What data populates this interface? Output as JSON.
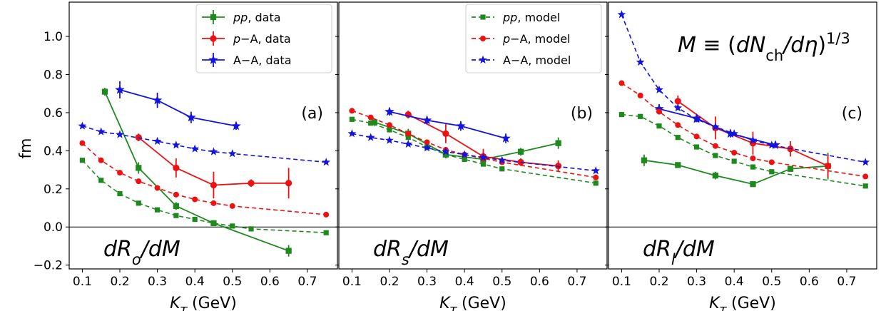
{
  "ylabel": "fm",
  "xlabel": "K_T (GeV)",
  "colors": {
    "pp": "#1e8a1e",
    "pA": "#ee1111",
    "AA": "#1414dd"
  },
  "chart_data": {
    "type": "line",
    "shared_y": true,
    "ylim": [
      -0.22,
      1.18
    ],
    "yticks": [
      -0.2,
      0.0,
      0.2,
      0.4,
      0.6,
      0.8,
      1.0
    ],
    "ytick_labels": [
      "−0.2",
      "0.0",
      "0.2",
      "0.4",
      "0.6",
      "0.8",
      "1.0"
    ],
    "xlim": [
      0.065,
      0.78
    ],
    "xticks": [
      0.1,
      0.2,
      0.3,
      0.4,
      0.5,
      0.6,
      0.7
    ],
    "xtick_labels": [
      "0.1",
      "0.2",
      "0.3",
      "0.4",
      "0.5",
      "0.6",
      "0.7"
    ],
    "xlabel": "K_T (GeV)",
    "ylabel": "fm",
    "formula": "M ≡ (dN_ch/dη)^1/3",
    "panels": [
      {
        "tag": "(a)",
        "deriv_label": "dR_o/dM",
        "legend": [
          "pp, data",
          "p−A, data",
          "A−A, data"
        ],
        "series": [
          {
            "name": "pp, data",
            "kind": "data",
            "color_key": "pp",
            "marker": "square",
            "x": [
              0.16,
              0.25,
              0.35,
              0.45,
              0.65
            ],
            "y": [
              0.71,
              0.31,
              0.11,
              0.02,
              -0.125
            ],
            "err": [
              0.02,
              0.03,
              0.02,
              0.015,
              0.03
            ]
          },
          {
            "name": "p−A, data",
            "kind": "data",
            "color_key": "pA",
            "marker": "circle",
            "x": [
              0.25,
              0.35,
              0.45,
              0.55,
              0.65
            ],
            "y": [
              0.47,
              0.31,
              0.22,
              0.23,
              0.23
            ],
            "err": [
              0.02,
              0.05,
              0.07,
              0.02,
              0.08
            ]
          },
          {
            "name": "A−A, data",
            "kind": "data",
            "color_key": "AA",
            "marker": "star",
            "x": [
              0.2,
              0.3,
              0.39,
              0.51
            ],
            "y": [
              0.72,
              0.665,
              0.575,
              0.53
            ],
            "err": [
              0.045,
              0.04,
              0.03,
              0.02
            ]
          },
          {
            "name": "pp, model",
            "kind": "model",
            "color_key": "pp",
            "marker": "square",
            "x": [
              0.1,
              0.15,
              0.2,
              0.25,
              0.3,
              0.35,
              0.4,
              0.45,
              0.5,
              0.55,
              0.75
            ],
            "y": [
              0.35,
              0.245,
              0.175,
              0.125,
              0.09,
              0.06,
              0.04,
              0.02,
              0.005,
              -0.01,
              -0.03
            ]
          },
          {
            "name": "p−A, model",
            "kind": "model",
            "color_key": "pA",
            "marker": "circle",
            "x": [
              0.1,
              0.15,
              0.2,
              0.25,
              0.3,
              0.35,
              0.4,
              0.45,
              0.5,
              0.75
            ],
            "y": [
              0.44,
              0.35,
              0.285,
              0.24,
              0.205,
              0.17,
              0.145,
              0.125,
              0.11,
              0.065
            ]
          },
          {
            "name": "A−A, model",
            "kind": "model",
            "color_key": "AA",
            "marker": "star",
            "x": [
              0.1,
              0.15,
              0.2,
              0.3,
              0.35,
              0.4,
              0.45,
              0.5,
              0.75
            ],
            "y": [
              0.53,
              0.5,
              0.485,
              0.45,
              0.43,
              0.41,
              0.395,
              0.385,
              0.34
            ]
          }
        ]
      },
      {
        "tag": "(b)",
        "deriv_label": "dR_s/dM",
        "legend": [
          "pp, model",
          "p−A, model",
          "A−A, model"
        ],
        "series": [
          {
            "name": "pp, data",
            "kind": "data",
            "color_key": "pp",
            "marker": "square",
            "x": [
              0.16,
              0.25,
              0.35,
              0.45,
              0.55,
              0.65
            ],
            "y": [
              0.55,
              0.49,
              0.38,
              0.355,
              0.395,
              0.44
            ],
            "err": [
              0.02,
              0.025,
              0.02,
              0.02,
              0.02,
              0.03
            ]
          },
          {
            "name": "p−A, data",
            "kind": "data",
            "color_key": "pA",
            "marker": "circle",
            "x": [
              0.25,
              0.35,
              0.45,
              0.55,
              0.65
            ],
            "y": [
              0.59,
              0.49,
              0.37,
              0.34,
              0.32
            ],
            "err": [
              0.02,
              0.05,
              0.04,
              0.02,
              0.03
            ]
          },
          {
            "name": "A−A, data",
            "kind": "data",
            "color_key": "AA",
            "marker": "star",
            "x": [
              0.2,
              0.3,
              0.39,
              0.51
            ],
            "y": [
              0.605,
              0.56,
              0.53,
              0.465
            ],
            "err": [
              0.02,
              0.02,
              0.025,
              0.025
            ]
          },
          {
            "name": "pp, model",
            "kind": "model",
            "color_key": "pp",
            "marker": "square",
            "x": [
              0.1,
              0.15,
              0.2,
              0.25,
              0.3,
              0.35,
              0.4,
              0.45,
              0.5,
              0.75
            ],
            "y": [
              0.565,
              0.545,
              0.51,
              0.47,
              0.42,
              0.38,
              0.355,
              0.33,
              0.305,
              0.23
            ]
          },
          {
            "name": "p−A, model",
            "kind": "model",
            "color_key": "pA",
            "marker": "circle",
            "x": [
              0.1,
              0.15,
              0.2,
              0.25,
              0.3,
              0.35,
              0.4,
              0.45,
              0.5,
              0.75
            ],
            "y": [
              0.61,
              0.575,
              0.535,
              0.49,
              0.445,
              0.405,
              0.38,
              0.36,
              0.34,
              0.26
            ]
          },
          {
            "name": "A−A, model",
            "kind": "model",
            "color_key": "AA",
            "marker": "star",
            "x": [
              0.1,
              0.15,
              0.2,
              0.25,
              0.3,
              0.35,
              0.4,
              0.45,
              0.5,
              0.75
            ],
            "y": [
              0.49,
              0.47,
              0.455,
              0.435,
              0.415,
              0.395,
              0.38,
              0.365,
              0.35,
              0.295
            ]
          }
        ]
      },
      {
        "tag": "(c)",
        "deriv_label": "dR_l/dM",
        "legend": [],
        "series": [
          {
            "name": "pp, data",
            "kind": "data",
            "color_key": "pp",
            "marker": "square",
            "x": [
              0.16,
              0.25,
              0.35,
              0.45,
              0.55,
              0.65
            ],
            "y": [
              0.35,
              0.325,
              0.27,
              0.225,
              0.305,
              0.32
            ],
            "err": [
              0.03,
              0.015,
              0.02,
              0.015,
              0.015,
              0.07
            ]
          },
          {
            "name": "p−A, data",
            "kind": "data",
            "color_key": "pA",
            "marker": "circle",
            "x": [
              0.25,
              0.35,
              0.45,
              0.55,
              0.65
            ],
            "y": [
              0.66,
              0.52,
              0.44,
              0.41,
              0.32
            ],
            "err": [
              0.03,
              0.06,
              0.06,
              0.04,
              0.06
            ]
          },
          {
            "name": "A−A, data",
            "kind": "data",
            "color_key": "AA",
            "marker": "star",
            "x": [
              0.2,
              0.3,
              0.39,
              0.51
            ],
            "y": [
              0.62,
              0.57,
              0.49,
              0.43
            ],
            "err": [
              0.025,
              0.02,
              0.02,
              0.015
            ]
          },
          {
            "name": "pp, model",
            "kind": "model",
            "color_key": "pp",
            "marker": "square",
            "x": [
              0.1,
              0.15,
              0.2,
              0.25,
              0.3,
              0.35,
              0.4,
              0.45,
              0.5,
              0.75
            ],
            "y": [
              0.59,
              0.58,
              0.53,
              0.47,
              0.42,
              0.375,
              0.345,
              0.315,
              0.29,
              0.215
            ]
          },
          {
            "name": "p−A, model",
            "kind": "model",
            "color_key": "pA",
            "marker": "circle",
            "x": [
              0.1,
              0.15,
              0.2,
              0.25,
              0.3,
              0.35,
              0.4,
              0.45,
              0.5,
              0.75
            ],
            "y": [
              0.755,
              0.69,
              0.605,
              0.535,
              0.475,
              0.425,
              0.39,
              0.36,
              0.34,
              0.265
            ]
          },
          {
            "name": "A−A, model",
            "kind": "model",
            "color_key": "AA",
            "marker": "star",
            "x": [
              0.1,
              0.15,
              0.2,
              0.25,
              0.3,
              0.35,
              0.4,
              0.45,
              0.5,
              0.75
            ],
            "y": [
              1.115,
              0.865,
              0.72,
              0.625,
              0.565,
              0.525,
              0.49,
              0.455,
              0.43,
              0.34
            ]
          }
        ]
      }
    ]
  }
}
